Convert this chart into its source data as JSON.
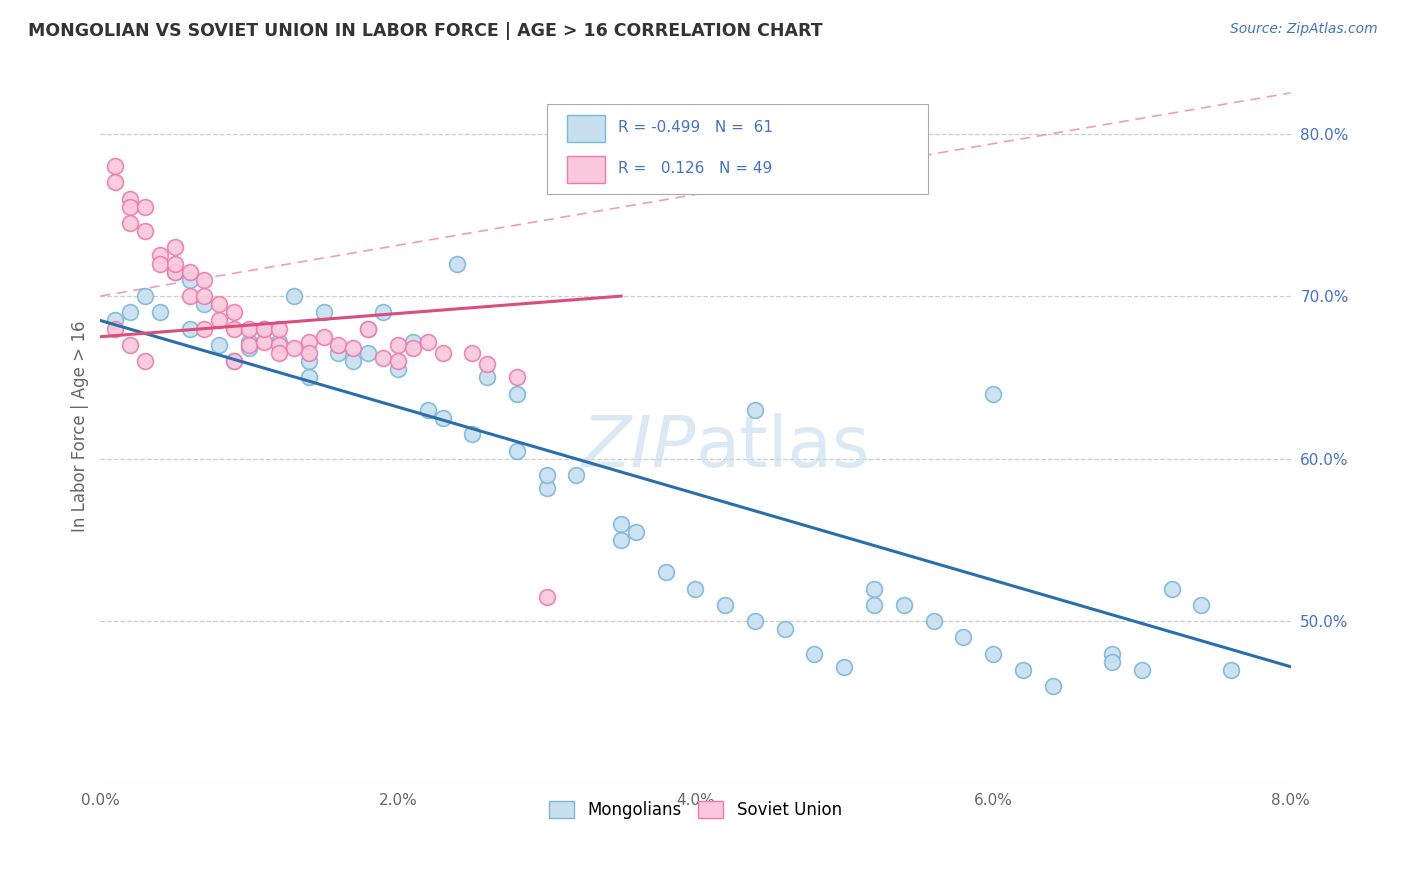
{
  "title": "MONGOLIAN VS SOVIET UNION IN LABOR FORCE | AGE > 16 CORRELATION CHART",
  "source_text": "Source: ZipAtlas.com",
  "ylabel": "In Labor Force | Age > 16",
  "xlim": [
    0.0,
    0.08
  ],
  "ylim": [
    0.4,
    0.84
  ],
  "xticks": [
    0.0,
    0.02,
    0.04,
    0.06,
    0.08
  ],
  "xticklabels": [
    "0.0%",
    "2.0%",
    "4.0%",
    "6.0%",
    "8.0%"
  ],
  "yticks": [
    0.5,
    0.6,
    0.7,
    0.8
  ],
  "yticklabels": [
    "50.0%",
    "60.0%",
    "70.0%",
    "80.0%"
  ],
  "color_mongolian_edge": "#7ab8d9",
  "color_mongolian_fill": "#c8dff0",
  "color_soviet_edge": "#f07aaa",
  "color_soviet_fill": "#f9c8dc",
  "color_blue_line": "#2a6fad",
  "color_pink_line": "#d94f7a",
  "color_ref_line": "#e8a0b8",
  "watermark_color": "#cde0f0",
  "mongolian_x": [
    0.001,
    0.002,
    0.003,
    0.004,
    0.005,
    0.006,
    0.007,
    0.008,
    0.009,
    0.01,
    0.011,
    0.012,
    0.013,
    0.014,
    0.015,
    0.016,
    0.017,
    0.018,
    0.019,
    0.02,
    0.021,
    0.022,
    0.023,
    0.025,
    0.026,
    0.028,
    0.03,
    0.032,
    0.035,
    0.038,
    0.04,
    0.042,
    0.044,
    0.046,
    0.048,
    0.05,
    0.052,
    0.054,
    0.056,
    0.058,
    0.06,
    0.062,
    0.064,
    0.068,
    0.07,
    0.072,
    0.074,
    0.076,
    0.03,
    0.035,
    0.028,
    0.024,
    0.018,
    0.014,
    0.01,
    0.006,
    0.036,
    0.044,
    0.052,
    0.06,
    0.068
  ],
  "mongolian_y": [
    0.685,
    0.69,
    0.7,
    0.69,
    0.715,
    0.68,
    0.695,
    0.67,
    0.66,
    0.668,
    0.68,
    0.672,
    0.7,
    0.66,
    0.69,
    0.665,
    0.66,
    0.68,
    0.69,
    0.655,
    0.672,
    0.63,
    0.625,
    0.615,
    0.65,
    0.605,
    0.582,
    0.59,
    0.56,
    0.53,
    0.52,
    0.51,
    0.5,
    0.495,
    0.48,
    0.472,
    0.52,
    0.51,
    0.5,
    0.49,
    0.48,
    0.47,
    0.46,
    0.48,
    0.47,
    0.52,
    0.51,
    0.47,
    0.59,
    0.55,
    0.64,
    0.72,
    0.665,
    0.65,
    0.672,
    0.71,
    0.555,
    0.63,
    0.51,
    0.64,
    0.475
  ],
  "soviet_x": [
    0.001,
    0.001,
    0.002,
    0.002,
    0.002,
    0.003,
    0.003,
    0.004,
    0.004,
    0.005,
    0.005,
    0.006,
    0.006,
    0.007,
    0.007,
    0.008,
    0.008,
    0.009,
    0.009,
    0.01,
    0.01,
    0.011,
    0.011,
    0.012,
    0.012,
    0.013,
    0.014,
    0.014,
    0.015,
    0.016,
    0.017,
    0.018,
    0.019,
    0.02,
    0.02,
    0.021,
    0.022,
    0.023,
    0.025,
    0.026,
    0.028,
    0.03,
    0.001,
    0.002,
    0.003,
    0.005,
    0.007,
    0.009,
    0.012
  ],
  "soviet_y": [
    0.77,
    0.78,
    0.76,
    0.755,
    0.745,
    0.755,
    0.74,
    0.725,
    0.72,
    0.73,
    0.715,
    0.715,
    0.7,
    0.71,
    0.7,
    0.695,
    0.685,
    0.68,
    0.69,
    0.67,
    0.68,
    0.672,
    0.68,
    0.67,
    0.68,
    0.668,
    0.672,
    0.665,
    0.675,
    0.67,
    0.668,
    0.68,
    0.662,
    0.67,
    0.66,
    0.668,
    0.672,
    0.665,
    0.665,
    0.658,
    0.65,
    0.515,
    0.68,
    0.67,
    0.66,
    0.72,
    0.68,
    0.66,
    0.665
  ],
  "blue_line_x": [
    0.0,
    0.08
  ],
  "blue_line_y": [
    0.685,
    0.472
  ],
  "pink_line_x": [
    0.0,
    0.035
  ],
  "pink_line_y": [
    0.675,
    0.7
  ],
  "ref_line_x": [
    0.0,
    0.08
  ],
  "ref_line_y": [
    0.7,
    0.825
  ]
}
